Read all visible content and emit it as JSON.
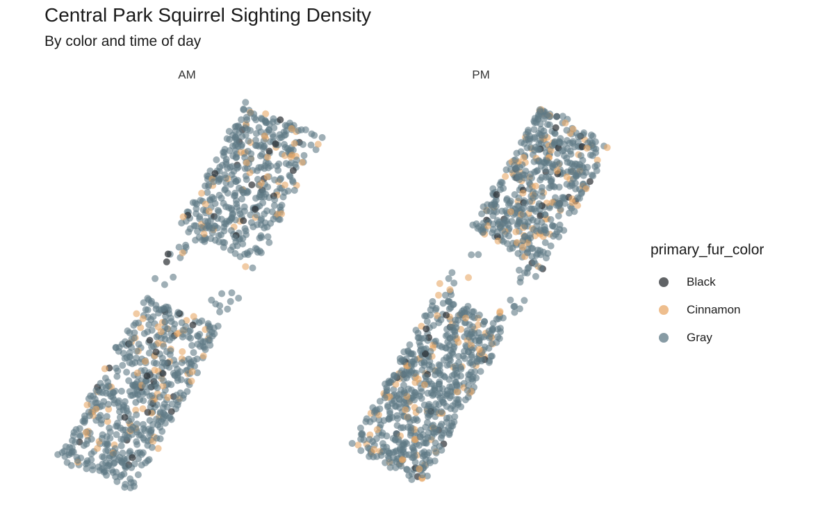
{
  "chart_data": {
    "type": "scatter",
    "title": "Central Park Squirrel Sighting Density",
    "subtitle": "By color and time of day",
    "facets": [
      "AM",
      "PM"
    ],
    "legend": {
      "title": "primary_fur_color",
      "placement": "right",
      "entries": [
        {
          "name": "Black",
          "color": "#2b2f33"
        },
        {
          "name": "Cinnamon",
          "color": "#e8a868"
        },
        {
          "name": "Gray",
          "color": "#5f7a85"
        }
      ]
    },
    "grid": false,
    "axes_visible": false,
    "series_counts": {
      "AM": {
        "Black": 45,
        "Cinnamon": 115,
        "Gray": 900
      },
      "PM": {
        "Black": 40,
        "Cinnamon": 170,
        "Gray": 1050
      }
    }
  }
}
